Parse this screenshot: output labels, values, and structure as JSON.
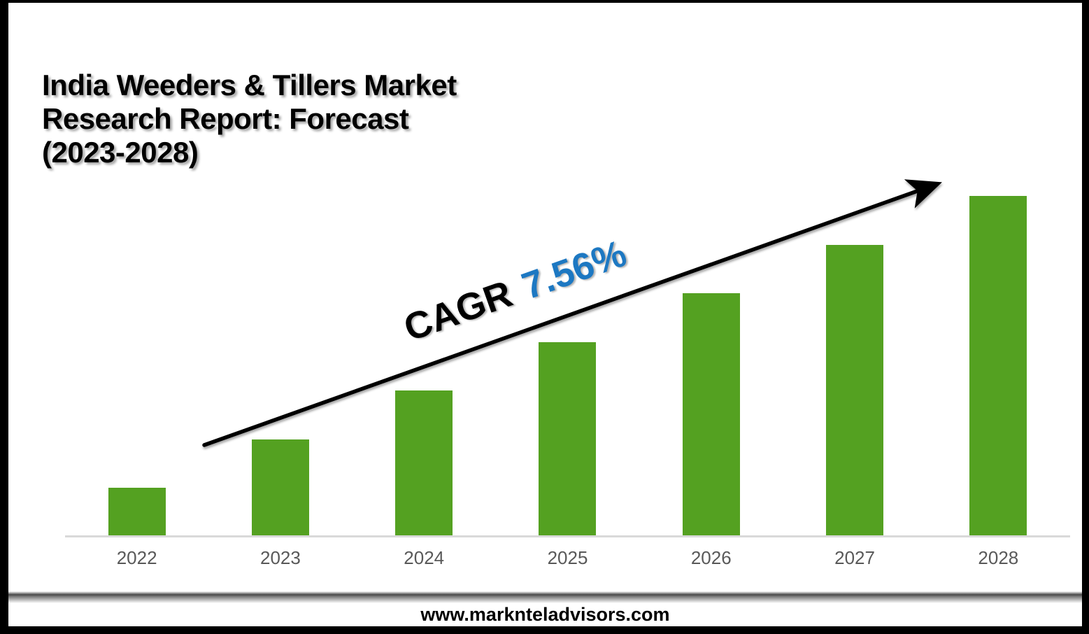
{
  "page": {
    "title": "India Weeders & Tillers Market\nResearch Report: Forecast\n(2023-2028)",
    "footer": {
      "website": "www.marknteladvisors.com"
    }
  },
  "annotation": {
    "cagr_label": "CAGR",
    "cagr_value": "7.56%"
  },
  "colors": {
    "bar_green": "#54a121",
    "cagr_blue": "#1d78c2",
    "axis_gray": "#d9d9d9",
    "label_gray": "#595959",
    "arrow_black": "#000000"
  },
  "chart_data": {
    "type": "bar",
    "title": "India Weeders & Tillers Market Research Report: Forecast (2023-2028)",
    "categories": [
      "2022",
      "2023",
      "2024",
      "2025",
      "2026",
      "2027",
      "2028"
    ],
    "values": [
      1,
      2,
      3,
      4,
      5,
      6,
      7
    ],
    "xlabel": "",
    "ylabel": "",
    "ylim": [
      0,
      7.5
    ],
    "grid": false,
    "legend": false,
    "value_axis_labels": false,
    "bar_color": "#54a121",
    "trend_arrow": true,
    "annotations": [
      "CAGR 7.56%"
    ]
  }
}
